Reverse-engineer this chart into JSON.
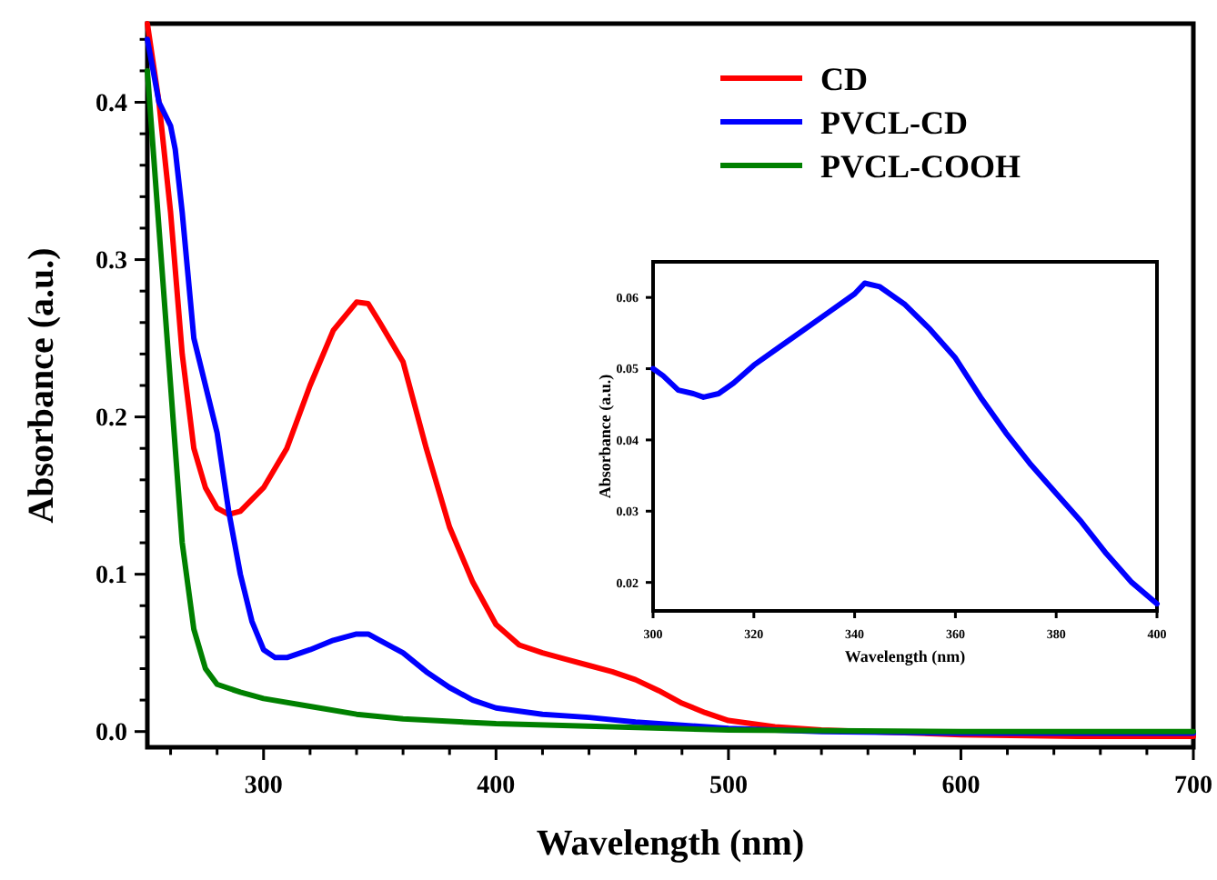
{
  "chart_data": [
    {
      "type": "line",
      "xlabel": "Wavelength (nm)",
      "ylabel": "Absorbance (a.u.)",
      "xlim": [
        250,
        700
      ],
      "ylim": [
        -0.01,
        0.45
      ],
      "xticks": [
        {
          "value": 260,
          "label": null
        },
        {
          "value": 280,
          "label": null
        },
        300,
        {
          "value": 320,
          "label": null
        },
        {
          "value": 340,
          "label": null
        },
        {
          "value": 360,
          "label": null
        },
        {
          "value": 380,
          "label": null
        },
        400,
        {
          "value": 420,
          "label": null
        },
        {
          "value": 440,
          "label": null
        },
        {
          "value": 460,
          "label": null
        },
        {
          "value": 480,
          "label": null
        },
        500,
        {
          "value": 520,
          "label": null
        },
        {
          "value": 540,
          "label": null
        },
        {
          "value": 560,
          "label": null
        },
        {
          "value": 580,
          "label": null
        },
        600,
        {
          "value": 620,
          "label": null
        },
        {
          "value": 640,
          "label": null
        },
        {
          "value": 660,
          "label": null
        },
        {
          "value": 680,
          "label": null
        },
        700
      ],
      "yticks": [
        {
          "value": 0,
          "label": "0.0"
        },
        {
          "value": 0.02,
          "label": null
        },
        {
          "value": 0.04,
          "label": null
        },
        {
          "value": 0.06,
          "label": null
        },
        {
          "value": 0.08,
          "label": null
        },
        0.1,
        {
          "value": 0.12,
          "label": null
        },
        {
          "value": 0.14,
          "label": null
        },
        {
          "value": 0.16,
          "label": null
        },
        {
          "value": 0.18,
          "label": null
        },
        0.2,
        {
          "value": 0.22,
          "label": null
        },
        {
          "value": 0.24,
          "label": null
        },
        {
          "value": 0.26,
          "label": null
        },
        {
          "value": 0.28,
          "label": null
        },
        0.3,
        {
          "value": 0.32,
          "label": null
        },
        {
          "value": 0.34,
          "label": null
        },
        {
          "value": 0.36,
          "label": null
        },
        {
          "value": 0.38,
          "label": null
        },
        0.4,
        {
          "value": 0.42,
          "label": null
        },
        {
          "value": 0.44,
          "label": null
        }
      ],
      "legend": "top right",
      "grid": false,
      "line_style": "solid",
      "marker": "none",
      "series": [
        {
          "name": "CD",
          "color": "#ff0000",
          "x": [
            250,
            255,
            260,
            265,
            270,
            275,
            280,
            285,
            290,
            300,
            310,
            320,
            330,
            340,
            345,
            350,
            360,
            370,
            380,
            390,
            400,
            410,
            420,
            430,
            440,
            450,
            460,
            470,
            480,
            490,
            500,
            520,
            540,
            560,
            600,
            650,
            700
          ],
          "values": [
            0.45,
            0.4,
            0.33,
            0.24,
            0.18,
            0.155,
            0.142,
            0.138,
            0.14,
            0.155,
            0.18,
            0.22,
            0.255,
            0.273,
            0.272,
            0.26,
            0.235,
            0.18,
            0.13,
            0.095,
            0.068,
            0.055,
            0.05,
            0.046,
            0.042,
            0.038,
            0.033,
            0.026,
            0.018,
            0.012,
            0.007,
            0.003,
            0.001,
            0,
            -0.002,
            -0.003,
            -0.003
          ]
        },
        {
          "name": "PVCL-CD",
          "color": "#0000ff",
          "x": [
            250,
            255,
            260,
            262,
            265,
            270,
            280,
            285,
            290,
            295,
            300,
            305,
            310,
            320,
            330,
            340,
            345,
            350,
            360,
            370,
            380,
            390,
            400,
            420,
            440,
            460,
            480,
            500,
            540,
            600,
            700
          ],
          "values": [
            0.44,
            0.4,
            0.385,
            0.37,
            0.33,
            0.25,
            0.19,
            0.14,
            0.1,
            0.07,
            0.052,
            0.047,
            0.047,
            0.052,
            0.058,
            0.062,
            0.062,
            0.058,
            0.05,
            0.038,
            0.028,
            0.02,
            0.015,
            0.011,
            0.009,
            0.006,
            0.004,
            0.002,
            0,
            -0.001,
            -0.001
          ]
        },
        {
          "name": "PVCL-COOH",
          "color": "#008000",
          "x": [
            250,
            255,
            260,
            265,
            270,
            275,
            280,
            290,
            300,
            320,
            340,
            360,
            400,
            450,
            500,
            600,
            700
          ],
          "values": [
            0.42,
            0.32,
            0.22,
            0.12,
            0.065,
            0.04,
            0.03,
            0.025,
            0.021,
            0.016,
            0.011,
            0.008,
            0.005,
            0.003,
            0.001,
            0,
            0
          ]
        }
      ]
    },
    {
      "type": "line",
      "xlabel": "Wavelength (nm)",
      "ylabel": "Absorbance (a.u.)",
      "xlim": [
        300,
        400
      ],
      "ylim": [
        0.016,
        0.065
      ],
      "xticks": [
        300,
        320,
        340,
        360,
        380,
        400
      ],
      "yticks": [
        0.02,
        0.03,
        0.04,
        0.05,
        0.06
      ],
      "grid": false,
      "line_style": "solid",
      "marker": "none",
      "series": [
        {
          "color": "#0000ff",
          "x": [
            300,
            302,
            305,
            308,
            310,
            313,
            316,
            320,
            325,
            330,
            335,
            340,
            342,
            345,
            350,
            355,
            360,
            365,
            370,
            375,
            380,
            385,
            390,
            395,
            400
          ],
          "values": [
            0.05,
            0.049,
            0.047,
            0.0465,
            0.046,
            0.0465,
            0.048,
            0.0505,
            0.053,
            0.0555,
            0.058,
            0.0605,
            0.062,
            0.0615,
            0.059,
            0.0555,
            0.0515,
            0.046,
            0.041,
            0.0365,
            0.0325,
            0.0285,
            0.024,
            0.02,
            0.017
          ]
        }
      ]
    }
  ]
}
